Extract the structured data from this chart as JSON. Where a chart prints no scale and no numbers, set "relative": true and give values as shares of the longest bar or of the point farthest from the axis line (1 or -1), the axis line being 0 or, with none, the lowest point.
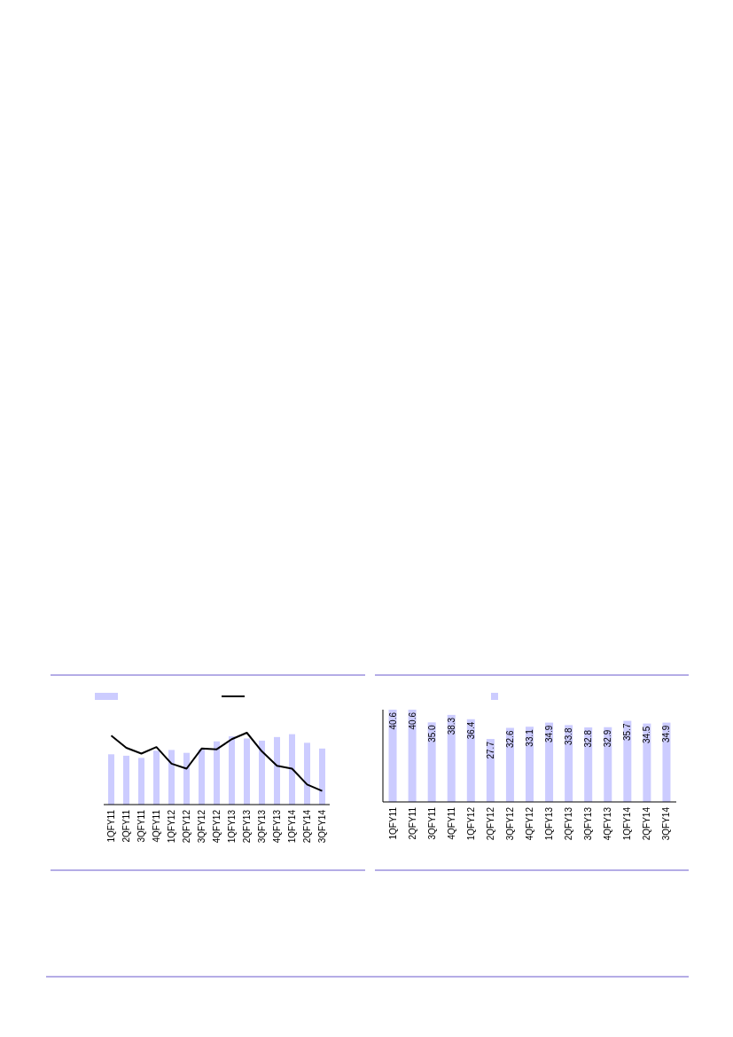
{
  "chart_data": [
    {
      "type": "bar",
      "categories": [
        "1QFY11",
        "2QFY11",
        "3QFY11",
        "4QFY11",
        "1QFY12",
        "2QFY12",
        "3QFY12",
        "4QFY12",
        "1QFY13",
        "2QFY13",
        "3QFY13",
        "4QFY13",
        "1QFY14",
        "2QFY14",
        "3QFY14"
      ],
      "relative": true,
      "series": [
        {
          "color": "#ccccff",
          "values": [
            0.7,
            0.68,
            0.65,
            0.75,
            0.76,
            0.72,
            0.77,
            0.88,
            0.95,
            0.92,
            0.89,
            0.94,
            0.98,
            0.86,
            0.78
          ]
        },
        {
          "type": "line",
          "color": "#000000",
          "values": [
            0.96,
            0.79,
            0.71,
            0.8,
            0.57,
            0.5,
            0.78,
            0.77,
            0.91,
            1,
            0.74,
            0.54,
            0.5,
            0.28,
            0.19
          ]
        }
      ]
    },
    {
      "type": "bar",
      "categories": [
        "1QFY11",
        "2QFY11",
        "3QFY11",
        "4QFY11",
        "1QFY12",
        "2QFY12",
        "3QFY12",
        "4QFY12",
        "1QFY13",
        "2QFY13",
        "3QFY13",
        "4QFY13",
        "1QFY14",
        "2QFY14",
        "3QFY14"
      ],
      "values": [
        40.6,
        40.6,
        35.0,
        38.3,
        36.4,
        27.7,
        32.6,
        33.1,
        34.9,
        33.8,
        32.8,
        32.9,
        35.7,
        34.5,
        34.9
      ],
      "value_labels": [
        "40.6",
        "40.6",
        "35.0",
        "38.3",
        "36.4",
        "27.7",
        "32.6",
        "33.1",
        "34.9",
        "33.8",
        "32.8",
        "32.9",
        "35.7",
        "34.5",
        "34.9"
      ],
      "color": "#ccccff"
    }
  ]
}
